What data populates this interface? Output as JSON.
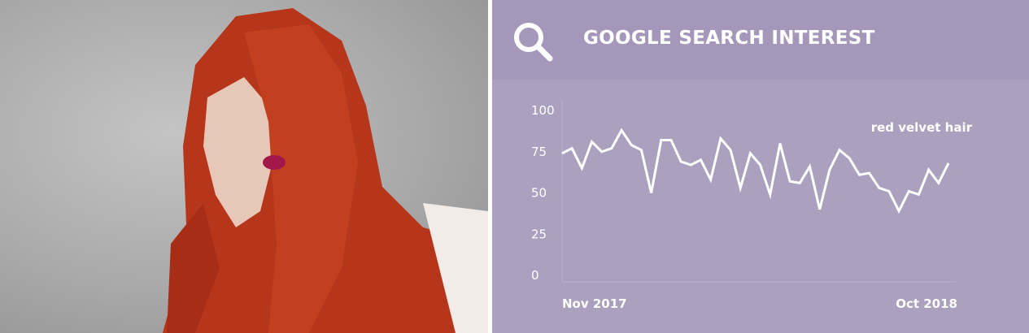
{
  "header": {
    "title": "GOOGLE SEARCH INTEREST",
    "icon": "search-icon"
  },
  "photo": {
    "subject": "woman with long wavy red hair"
  },
  "colors": {
    "header_bg": "#a597b9",
    "chart_bg": "#aba0bd",
    "line": "#ffffff"
  },
  "chart_data": {
    "type": "line",
    "title": "GOOGLE SEARCH INTEREST",
    "x_start_label": "Nov 2017",
    "x_end_label": "Oct 2018",
    "y_ticks": [
      "0",
      "25",
      "50",
      "75",
      "100"
    ],
    "ylim": [
      0,
      100
    ],
    "grid": false,
    "series": [
      {
        "name": "red velvet hair",
        "values": [
          74,
          77,
          65,
          81,
          75,
          77,
          88,
          79,
          76,
          50,
          82,
          82,
          69,
          67,
          70,
          58,
          83,
          76,
          53,
          74,
          67,
          49,
          80,
          57,
          56,
          66,
          40,
          64,
          76,
          71,
          61,
          62,
          53,
          51,
          39,
          51,
          49,
          64,
          56,
          68
        ]
      }
    ]
  }
}
